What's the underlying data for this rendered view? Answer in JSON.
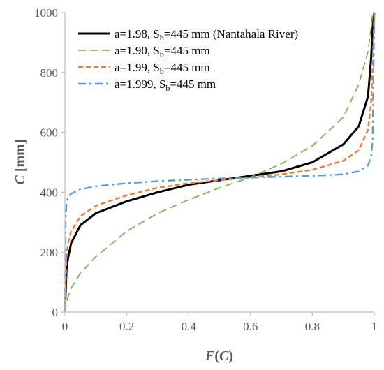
{
  "chart_data": {
    "type": "line",
    "xlabel": {
      "var": "F",
      "open": "(",
      "arg": "C",
      "close": ")"
    },
    "ylabel": {
      "var": "C",
      "unit": " [mm]"
    },
    "xlim": [
      0,
      1
    ],
    "ylim": [
      0,
      1000
    ],
    "xticks": [
      "0",
      "0.2",
      "0.4",
      "0.6",
      "0.8",
      "1"
    ],
    "yticks": [
      "0",
      "200",
      "400",
      "600",
      "800",
      "1000"
    ],
    "grid": false,
    "legend_position": "top",
    "series": [
      {
        "legend": {
          "a": "a=1.98, ",
          "s": "S",
          "sub": "b",
          "rest": "=445 mm (Nantahala River)"
        },
        "color": "#000000",
        "style": "solid",
        "x": [
          0,
          0.005,
          0.01,
          0.02,
          0.05,
          0.1,
          0.2,
          0.3,
          0.4,
          0.5,
          0.6,
          0.7,
          0.8,
          0.9,
          0.95,
          0.98,
          0.99,
          0.995,
          1.0
        ],
        "y": [
          0,
          140,
          180,
          230,
          290,
          330,
          370,
          400,
          425,
          440,
          455,
          470,
          500,
          560,
          620,
          720,
          850,
          950,
          1000
        ]
      },
      {
        "legend": {
          "a": "a=1.90, ",
          "s": "S",
          "sub": "b",
          "rest": "=445 mm"
        },
        "color": "#70AD47",
        "style": "long-dash",
        "x": [
          0,
          0.005,
          0.01,
          0.02,
          0.05,
          0.1,
          0.2,
          0.3,
          0.4,
          0.5,
          0.6,
          0.7,
          0.8,
          0.9,
          0.95,
          0.98,
          0.99,
          0.995
        ],
        "y": [
          0,
          30,
          50,
          80,
          130,
          185,
          270,
          330,
          375,
          415,
          450,
          495,
          555,
          650,
          760,
          870,
          950,
          1000
        ]
      },
      {
        "legend": {
          "a": "a=1.99, ",
          "s": "S",
          "sub": "b",
          "rest": "=445 mm"
        },
        "color": "#ED7D31",
        "style": "short-dash",
        "x": [
          0,
          0.003,
          0.005,
          0.01,
          0.02,
          0.05,
          0.1,
          0.2,
          0.3,
          0.4,
          0.5,
          0.6,
          0.7,
          0.8,
          0.9,
          0.95,
          0.98,
          0.99,
          0.995,
          1.0
        ],
        "y": [
          0,
          120,
          180,
          230,
          270,
          320,
          355,
          390,
          415,
          430,
          440,
          450,
          460,
          475,
          505,
          540,
          610,
          700,
          820,
          1000
        ]
      },
      {
        "legend": {
          "a": "a=1.999, ",
          "s": "S",
          "sub": "b",
          "rest": "=445 mm"
        },
        "color": "#5B9BD5",
        "style": "dash-dot",
        "x": [
          0,
          0.002,
          0.005,
          0.01,
          0.02,
          0.05,
          0.1,
          0.2,
          0.3,
          0.4,
          0.5,
          0.6,
          0.7,
          0.8,
          0.9,
          0.95,
          0.98,
          0.99,
          0.995,
          1.0
        ],
        "y": [
          0,
          300,
          360,
          385,
          395,
          410,
          420,
          430,
          437,
          442,
          446,
          449,
          452,
          455,
          460,
          470,
          490,
          520,
          580,
          1000
        ]
      }
    ]
  }
}
